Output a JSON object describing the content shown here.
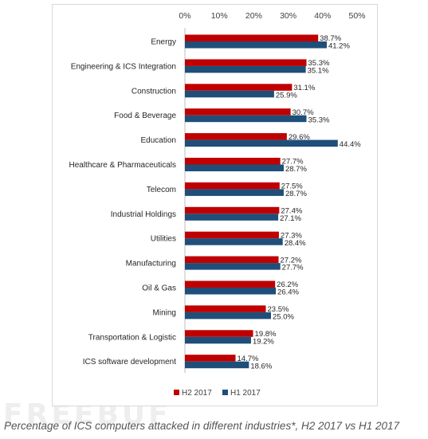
{
  "chart_data": {
    "type": "bar",
    "orientation": "horizontal",
    "categories": [
      "Energy",
      "Engineering & ICS Integration",
      "Construction",
      "Food & Beverage",
      "Education",
      "Healthcare & Pharmaceuticals",
      "Telecom",
      "Industrial Holdings",
      "Utilities",
      "Manufacturing",
      "Oil & Gas",
      "Mining",
      "Transportation & Logistic",
      "ICS software development"
    ],
    "series": [
      {
        "name": "H2 2017",
        "color": "#c00000",
        "values": [
          38.7,
          35.3,
          31.1,
          30.7,
          29.6,
          27.7,
          27.5,
          27.4,
          27.3,
          27.2,
          26.2,
          23.5,
          19.8,
          14.7
        ],
        "labels": [
          "38.7%",
          "35.3%",
          "31.1%",
          "30.7%",
          "29.6%",
          "27.7%",
          "27.5%",
          "27.4%",
          "27.3%",
          "27.2%",
          "26.2%",
          "23.5%",
          "19.8%",
          "14.7%"
        ]
      },
      {
        "name": "H1 2017",
        "color": "#1f4e79",
        "values": [
          41.2,
          35.1,
          25.9,
          35.3,
          44.4,
          28.7,
          28.7,
          27.1,
          28.4,
          27.7,
          26.4,
          25.0,
          19.2,
          18.6
        ],
        "labels": [
          "41.2%",
          "35.1%",
          "25.9%",
          "35.3%",
          "44.4%",
          "28.7%",
          "28.7%",
          "27.1%",
          "28.4%",
          "27.7%",
          "26.4%",
          "25.0%",
          "19.2%",
          "18.6%"
        ]
      }
    ],
    "xlim": [
      0,
      50
    ],
    "x_ticks": [
      0,
      10,
      20,
      30,
      40,
      50
    ],
    "x_tick_labels": [
      "0%",
      "10%",
      "20%",
      "30%",
      "40%",
      "50%"
    ],
    "axis_position": "top",
    "grid": false,
    "legend_placement": "bottom",
    "title": "",
    "xlabel": "",
    "ylabel": ""
  },
  "caption": "Percentage of ICS computers attacked in different industries*, H2 2017 vs H1 2017",
  "watermark": "FREEBUF"
}
